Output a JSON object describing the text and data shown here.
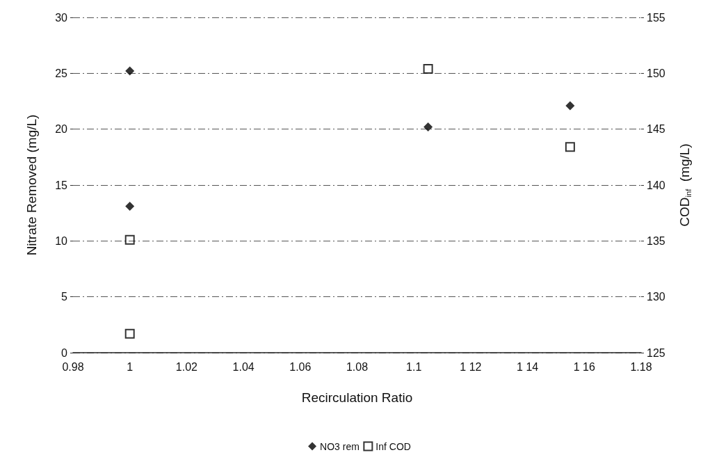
{
  "chart_data": {
    "type": "scatter",
    "xlabel": "Recirculation Ratio",
    "ylabel": "Nitrate Removed (mg/L)",
    "y2label": "COD$_{inf}$  (mg/L)",
    "xlim": [
      0.98,
      1.18
    ],
    "xticks": [
      0.98,
      1,
      1.02,
      1.04,
      1.06,
      1.08,
      1.1,
      {
        "value": 1.12,
        "label": "1 12"
      },
      {
        "value": 1.14,
        "label": "1 14"
      },
      {
        "value": 1.16,
        "label": "1 16"
      },
      1.18
    ],
    "ylim": [
      0,
      30
    ],
    "yticks": [
      0,
      5,
      10,
      15,
      20,
      25,
      30
    ],
    "y2lim": [
      125,
      155
    ],
    "y2ticks": [
      125,
      130,
      135,
      140,
      145,
      150,
      155
    ],
    "grid": "y",
    "legend": "bottom",
    "series": [
      {
        "name": "NO3 rem",
        "color": "#000000",
        "marker": "diamond",
        "x": [
          1.0,
          1.0,
          1.105,
          1.155
        ],
        "values": [
          25.2,
          13.1,
          20.2,
          22.1
        ]
      },
      {
        "name": "Inf COD",
        "color": "#000000",
        "marker": "square",
        "axis": "y2",
        "x": [
          1.0,
          1.0,
          1.105,
          1.155
        ],
        "values": [
          135.1,
          126.7,
          150.4,
          143.4
        ]
      }
    ]
  }
}
